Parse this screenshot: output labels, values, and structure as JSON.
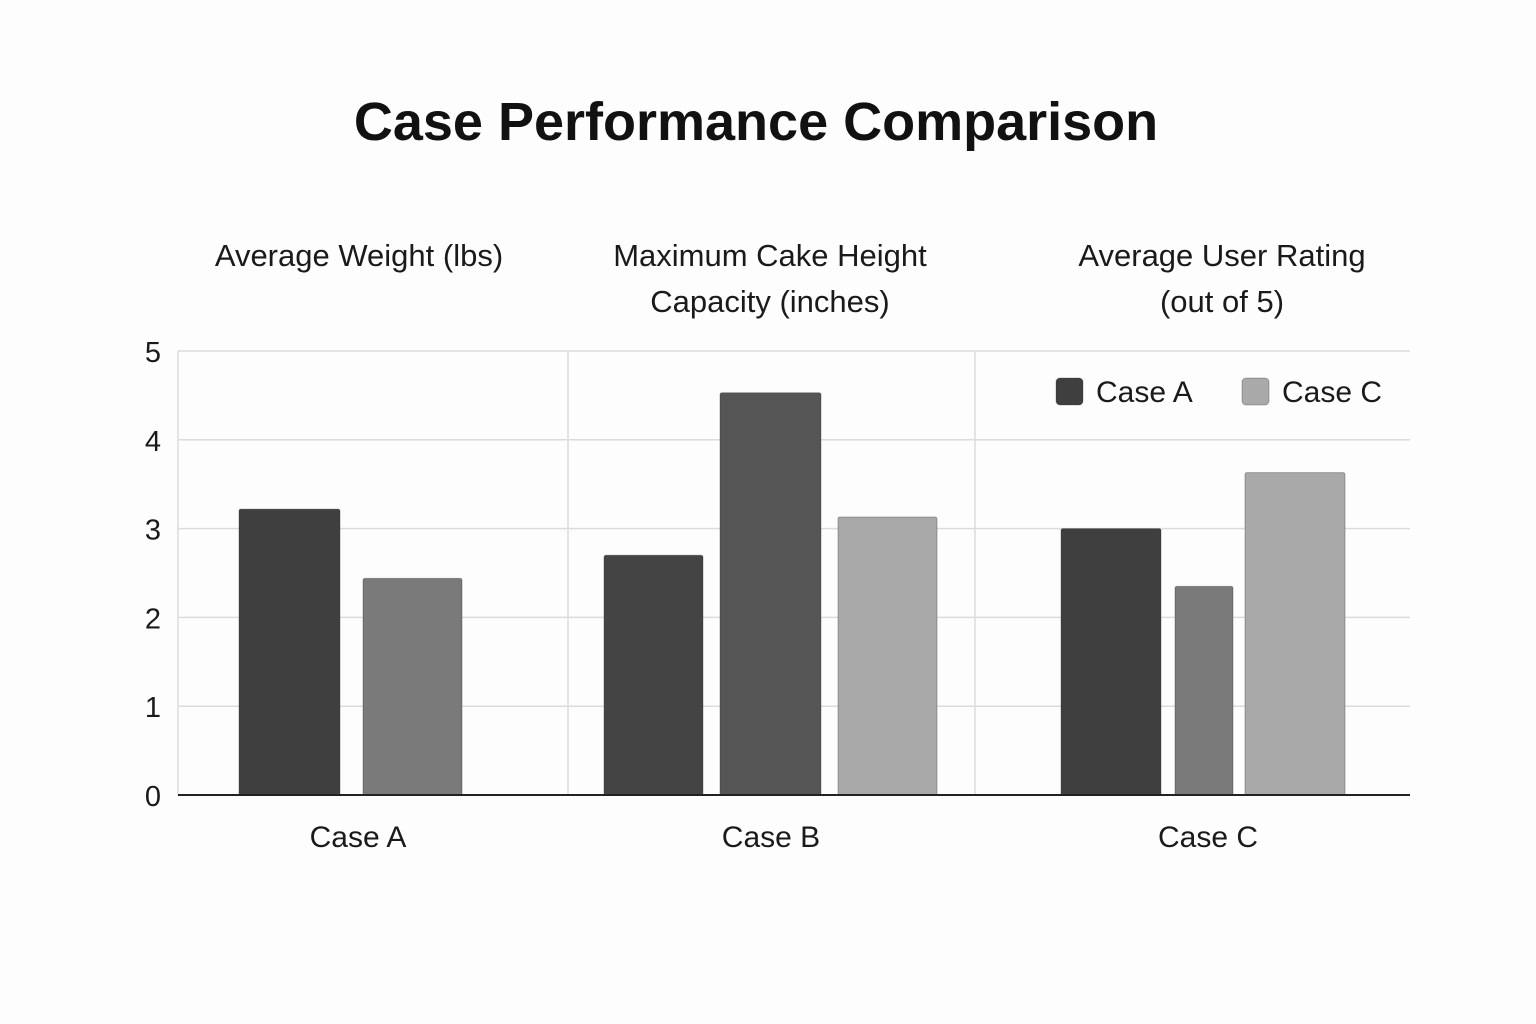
{
  "chart_data": {
    "type": "bar",
    "title": "Case Performance Comparison",
    "xlabel": "",
    "ylabel": "",
    "ylim": [
      0,
      5
    ],
    "yticks": [
      0,
      1,
      2,
      3,
      4,
      5
    ],
    "grid": true,
    "legend_position": "top-right",
    "legend": [
      {
        "label": "Case A",
        "color": "#3f3f3f"
      },
      {
        "label": "Case C",
        "color": "#a9a9a9"
      }
    ],
    "groups": [
      {
        "category": "Case A",
        "title_lines": [
          "Average Weight (lbs)"
        ],
        "bars": [
          {
            "value": 3.22,
            "color": "#3f3f3f"
          },
          {
            "value": 2.44,
            "color": "#7a7a7a"
          }
        ]
      },
      {
        "category": "Case B",
        "title_lines": [
          "Maximum Cake Height",
          "Capacity (inches)"
        ],
        "bars": [
          {
            "value": 2.7,
            "color": "#444444"
          },
          {
            "value": 4.53,
            "color": "#555555"
          },
          {
            "value": 3.13,
            "color": "#a9a9a9"
          }
        ]
      },
      {
        "category": "Case C",
        "title_lines": [
          "Average User Rating",
          "(out of 5)"
        ],
        "bars": [
          {
            "value": 3.0,
            "color": "#3f3f3f"
          },
          {
            "value": 2.35,
            "color": "#7a7a7a"
          },
          {
            "value": 3.63,
            "color": "#a9a9a9"
          }
        ]
      }
    ]
  }
}
